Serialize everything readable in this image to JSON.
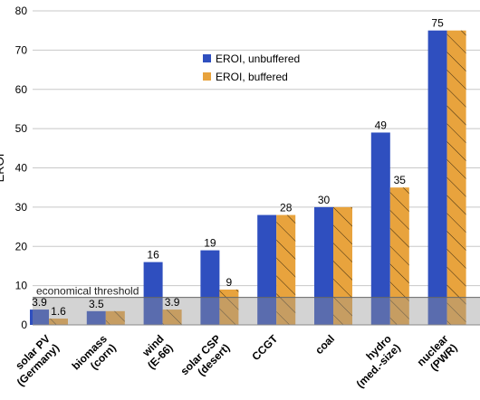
{
  "chart_data": {
    "type": "bar",
    "ylabel": "EROI",
    "ylim": [
      0,
      80
    ],
    "yticks": [
      0,
      10,
      20,
      30,
      40,
      50,
      60,
      70,
      80
    ],
    "grid": "horizontal",
    "legend_position": "top-center",
    "categories": [
      [
        "solar PV",
        "(Germany)"
      ],
      [
        "biomass",
        "(corn)"
      ],
      [
        "wind",
        "(E-66)"
      ],
      [
        "solar CSP",
        "(desert)"
      ],
      [
        "CCGT"
      ],
      [
        "coal"
      ],
      [
        "hydro",
        "(med.-size)"
      ],
      [
        "nuclear",
        "(PWR)"
      ]
    ],
    "series": [
      {
        "name": "EROI, unbuffered",
        "color": "#2f4fbf",
        "hatch": false,
        "values": [
          3.9,
          3.5,
          16,
          19,
          28,
          30,
          49,
          75
        ],
        "labels": [
          "3.9",
          "3.5",
          "16",
          "19",
          "",
          "30",
          "49",
          "75"
        ]
      },
      {
        "name": "EROI, buffered",
        "color": "#e8a33d",
        "hatch": true,
        "values": [
          1.6,
          3.5,
          3.9,
          9,
          28,
          30,
          35,
          75
        ],
        "labels": [
          "1.6",
          "",
          "3.9",
          "9",
          "28",
          "",
          "35",
          ""
        ]
      }
    ],
    "threshold": {
      "label": "economical threshold",
      "value": 7
    }
  }
}
